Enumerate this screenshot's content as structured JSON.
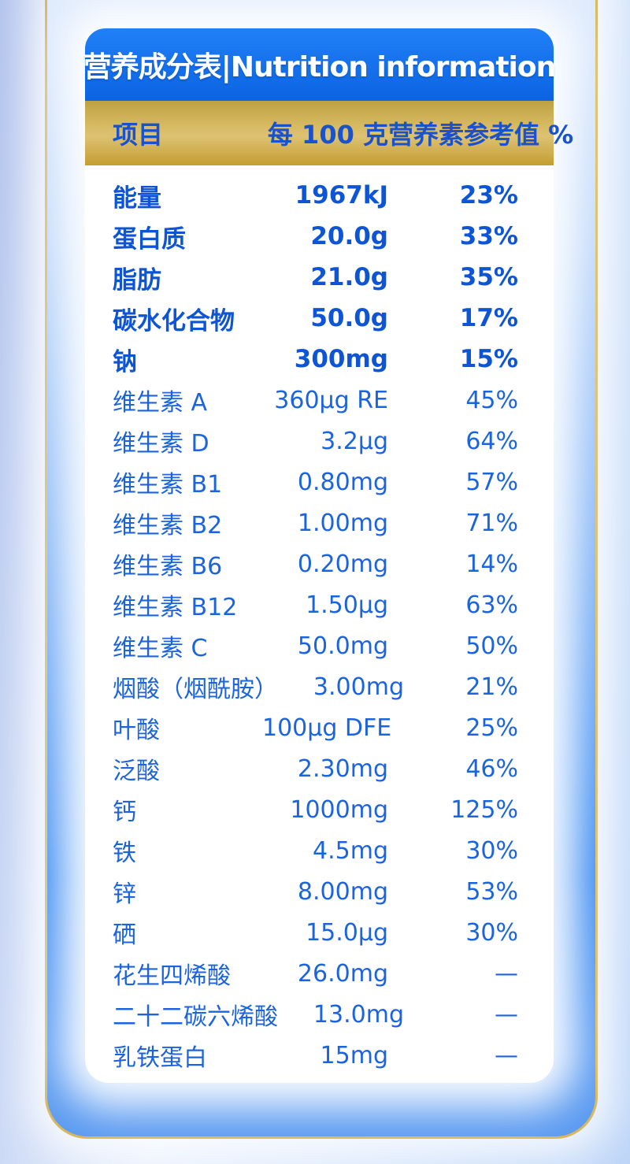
{
  "header": {
    "title": "营养成分表|Nutrition information"
  },
  "table": {
    "columns": {
      "item": "项目",
      "per_100g": "每 100 克",
      "nrv_percent": "营养素参考值 %"
    },
    "rows": [
      {
        "label": "能量",
        "amount": "1967kJ",
        "nrv": "23%",
        "bold": true
      },
      {
        "label": "蛋白质",
        "amount": "20.0g",
        "nrv": "33%",
        "bold": true
      },
      {
        "label": "脂肪",
        "amount": "21.0g",
        "nrv": "35%",
        "bold": true
      },
      {
        "label": "碳水化合物",
        "amount": "50.0g",
        "nrv": "17%",
        "bold": true
      },
      {
        "label": "钠",
        "amount": "300mg",
        "nrv": "15%",
        "bold": true
      },
      {
        "label": "维生素 A",
        "amount": "360μg RE",
        "nrv": "45%",
        "bold": false
      },
      {
        "label": "维生素 D",
        "amount": "3.2μg",
        "nrv": "64%",
        "bold": false
      },
      {
        "label": "维生素 B1",
        "amount": "0.80mg",
        "nrv": "57%",
        "bold": false
      },
      {
        "label": "维生素 B2",
        "amount": "1.00mg",
        "nrv": "71%",
        "bold": false
      },
      {
        "label": "维生素 B6",
        "amount": "0.20mg",
        "nrv": "14%",
        "bold": false
      },
      {
        "label": "维生素 B12",
        "amount": "1.50μg",
        "nrv": "63%",
        "bold": false
      },
      {
        "label": "维生素 C",
        "amount": "50.0mg",
        "nrv": "50%",
        "bold": false
      },
      {
        "label": "烟酸（烟酰胺）",
        "amount": "3.00mg",
        "nrv": "21%",
        "bold": false
      },
      {
        "label": "叶酸",
        "amount": "100μg DFE",
        "nrv": "25%",
        "bold": false
      },
      {
        "label": "泛酸",
        "amount": "2.30mg",
        "nrv": "46%",
        "bold": false
      },
      {
        "label": "钙",
        "amount": "1000mg",
        "nrv": "125%",
        "bold": false
      },
      {
        "label": "铁",
        "amount": "4.5mg",
        "nrv": "30%",
        "bold": false
      },
      {
        "label": "锌",
        "amount": "8.00mg",
        "nrv": "53%",
        "bold": false
      },
      {
        "label": "硒",
        "amount": "15.0μg",
        "nrv": "30%",
        "bold": false
      },
      {
        "label": "花生四烯酸",
        "amount": "26.0mg",
        "nrv": "—",
        "bold": false
      },
      {
        "label": "二十二碳六烯酸",
        "amount": "13.0mg",
        "nrv": "—",
        "bold": false
      },
      {
        "label": "乳铁蛋白",
        "amount": "15mg",
        "nrv": "—",
        "bold": false
      }
    ]
  },
  "colors": {
    "header_blue_top": "#2080f6",
    "header_blue_bottom": "#0c63e2",
    "gold_band": "#d7b961",
    "gold_border": "#d8b758",
    "card_blue": "#2f85f0",
    "row_text_blue": "#1c64dd",
    "bold_row_text_blue": "#0d55d5",
    "band_text_blue": "#1a52cc",
    "page_background": "#c9d7f5"
  }
}
